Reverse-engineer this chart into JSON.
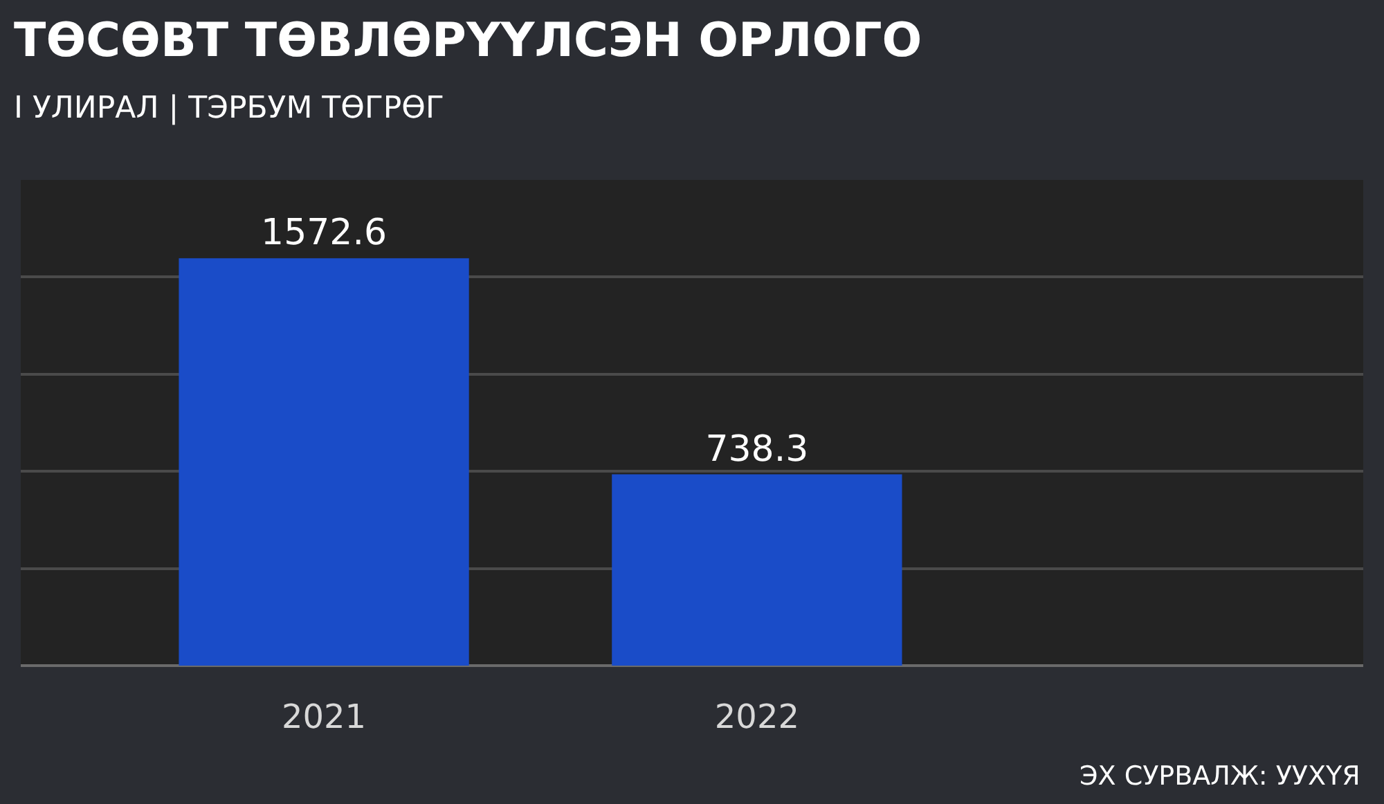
{
  "chart_data": {
    "type": "bar",
    "title": "ТӨСӨВТ ТӨВЛӨРҮҮЛСЭН ОРЛОГО",
    "subtitle": "I УЛИРАЛ | ТЭРБУМ ТӨГРӨГ",
    "categories": [
      "2021",
      "2022"
    ],
    "values": [
      1572.6,
      738.3
    ],
    "color": "#1a4cc8",
    "ylim": [
      0,
      1875
    ],
    "yticks": [
      {
        "value": 0,
        "label": null
      },
      {
        "value": 375,
        "label": null
      },
      {
        "value": 750,
        "label": null
      },
      {
        "value": 1125,
        "label": null
      },
      {
        "value": 1500,
        "label": null
      }
    ],
    "grid": "y",
    "data_labels": true,
    "annotations": [
      "ЭХ СУРВАЛЖ: УУХҮЯ"
    ]
  }
}
